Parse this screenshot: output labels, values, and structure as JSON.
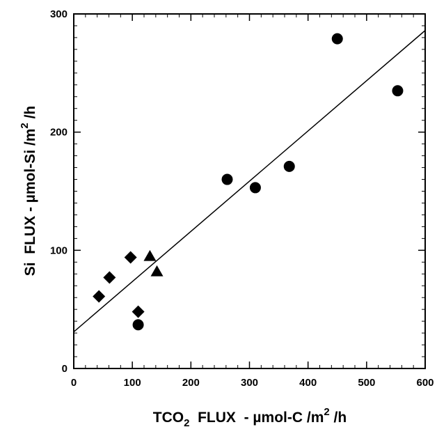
{
  "chart_data": {
    "type": "scatter",
    "title": "",
    "xlabel": {
      "prefix": "TCO",
      "sub": "2",
      "middle": "  FLUX  - µmol-C /m",
      "sup": "2",
      "suffix": " /h"
    },
    "ylabel": {
      "prefix": "Si  FLUX - µmol-Si /m",
      "sup": "2",
      "suffix": " /h"
    },
    "xlim": [
      0,
      600
    ],
    "ylim": [
      0,
      300
    ],
    "x_ticks": [
      0,
      100,
      200,
      300,
      400,
      500,
      600
    ],
    "x_tick_labels": [
      "0",
      "100",
      "200",
      "300",
      "400",
      "500",
      "600"
    ],
    "y_ticks": [
      0,
      100,
      200,
      300
    ],
    "y_tick_labels": [
      "0",
      "100",
      "200",
      "300"
    ],
    "minor_tick_step_x": 20,
    "minor_tick_step_y": 10,
    "grid": false,
    "series": [
      {
        "marker": "circle",
        "points": [
          {
            "x": 110,
            "y": 37
          },
          {
            "x": 262,
            "y": 160
          },
          {
            "x": 310,
            "y": 153
          },
          {
            "x": 368,
            "y": 171
          },
          {
            "x": 450,
            "y": 279
          },
          {
            "x": 553,
            "y": 235
          }
        ]
      },
      {
        "marker": "diamond",
        "points": [
          {
            "x": 43,
            "y": 61
          },
          {
            "x": 61,
            "y": 77
          },
          {
            "x": 97,
            "y": 94
          },
          {
            "x": 110,
            "y": 48
          }
        ]
      },
      {
        "marker": "triangle",
        "points": [
          {
            "x": 130,
            "y": 95
          },
          {
            "x": 142,
            "y": 82
          }
        ]
      }
    ],
    "fit_line": {
      "x": [
        0,
        600
      ],
      "y": [
        31,
        286
      ]
    },
    "colors": {
      "marker": "#000000",
      "line": "#000000",
      "axis": "#000000"
    }
  }
}
